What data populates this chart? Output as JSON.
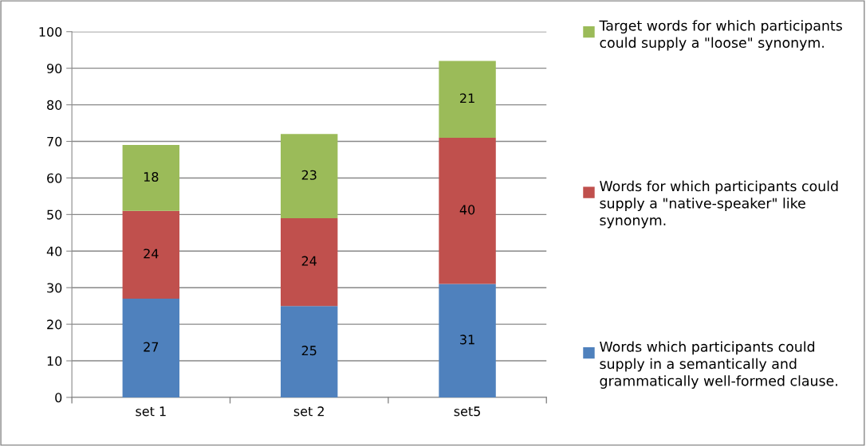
{
  "chart_data": {
    "type": "bar",
    "stacked": true,
    "categories": [
      "set 1",
      "set 2",
      "set5"
    ],
    "series": [
      {
        "name": "Words which participants could supply in a semantically and grammatically well-formed clause.",
        "color": "#4f81bd",
        "values": [
          27,
          25,
          31
        ]
      },
      {
        "name": "Words for which participants could supply a \"native-speaker\" like synonym.",
        "color": "#c0504d",
        "values": [
          24,
          24,
          40
        ]
      },
      {
        "name": "Target words for which participants could supply a \"loose\" synonym.",
        "color": "#9bbb59",
        "values": [
          18,
          23,
          21
        ]
      }
    ],
    "ylim": [
      0,
      100
    ],
    "yticks": [
      0,
      10,
      20,
      30,
      40,
      50,
      60,
      70,
      80,
      90,
      100
    ],
    "grid": "y",
    "legend": "right",
    "data_labels": true
  }
}
